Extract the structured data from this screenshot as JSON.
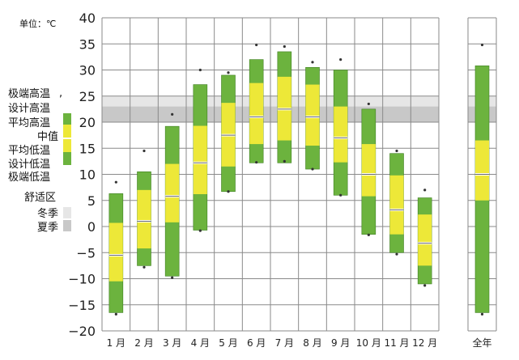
{
  "chart_data": {
    "type": "box",
    "unit_label": "单位：℃",
    "ylim": [
      -20,
      40
    ],
    "yticks": [
      -20,
      -15,
      -10,
      -5,
      0,
      5,
      10,
      15,
      20,
      25,
      30,
      35,
      40
    ],
    "comfort_zones": {
      "winter": [
        20,
        25
      ],
      "summer": [
        20,
        23
      ]
    },
    "colors": {
      "green": "#6cb33e",
      "yellow": "#ede838",
      "winter_zone": "#e6e6e6",
      "summer_zone": "#c8c8c8",
      "grid": "#8a8a8a"
    },
    "legend": {
      "stat_labels": [
        "极端高温",
        "设计高温",
        "平均高温",
        "中值",
        "平均低温",
        "设计低温",
        "极端低温"
      ],
      "zone_title": "舒适区",
      "winter_label": "冬季",
      "summer_label": "夏季"
    },
    "categories": [
      "1 月",
      "2 月",
      "3 月",
      "4 月",
      "5 月",
      "6 月",
      "7 月",
      "8 月",
      "9 月",
      "10 月",
      "11 月",
      "12 月"
    ],
    "annual_label": "全年",
    "months": [
      {
        "extreme_high": 8.5,
        "design_high": 6.3,
        "avg_high": 0.7,
        "median": -5.5,
        "avg_low": -10.5,
        "design_low": -16.5,
        "extreme_low": -16.8
      },
      {
        "extreme_high": 14.5,
        "design_high": 10.5,
        "avg_high": 7.0,
        "median": 1.0,
        "avg_low": -4.2,
        "design_low": -7.5,
        "extreme_low": -7.8
      },
      {
        "extreme_high": 21.5,
        "design_high": 19.2,
        "avg_high": 12.0,
        "median": 5.8,
        "avg_low": 0.8,
        "design_low": -9.5,
        "extreme_low": -9.8
      },
      {
        "extreme_high": 30.0,
        "design_high": 27.2,
        "avg_high": 19.3,
        "median": 12.2,
        "avg_low": 6.2,
        "design_low": -0.7,
        "extreme_low": -0.8
      },
      {
        "extreme_high": 29.5,
        "design_high": 29.0,
        "avg_high": 23.7,
        "median": 17.5,
        "avg_low": 11.5,
        "design_low": 6.7,
        "extreme_low": 6.7
      },
      {
        "extreme_high": 34.8,
        "design_high": 32.0,
        "avg_high": 27.5,
        "median": 21.0,
        "avg_low": 15.8,
        "design_low": 12.2,
        "extreme_low": 12.3
      },
      {
        "extreme_high": 34.5,
        "design_high": 33.5,
        "avg_high": 28.7,
        "median": 22.5,
        "avg_low": 16.5,
        "design_low": 12.2,
        "extreme_low": 12.5
      },
      {
        "extreme_high": 31.5,
        "design_high": 30.5,
        "avg_high": 27.2,
        "median": 21.0,
        "avg_low": 15.5,
        "design_low": 11.0,
        "extreme_low": 11.0
      },
      {
        "extreme_high": 32.0,
        "design_high": 30.0,
        "avg_high": 23.0,
        "median": 17.0,
        "avg_low": 12.3,
        "design_low": 6.0,
        "extreme_low": 6.0
      },
      {
        "extreme_high": 23.5,
        "design_high": 22.5,
        "avg_high": 15.8,
        "median": 10.0,
        "avg_low": 5.8,
        "design_low": -1.5,
        "extreme_low": -1.6
      },
      {
        "extreme_high": 14.5,
        "design_high": 14.0,
        "avg_high": 9.8,
        "median": 3.2,
        "avg_low": -1.5,
        "design_low": -5.0,
        "extreme_low": -5.3
      },
      {
        "extreme_high": 7.0,
        "design_high": 5.5,
        "avg_high": 2.3,
        "median": -3.2,
        "avg_low": -7.5,
        "design_low": -11.0,
        "extreme_low": -11.3
      }
    ],
    "annual": {
      "extreme_high": 34.8,
      "design_high": 30.8,
      "avg_high": 16.5,
      "median": 10.0,
      "avg_low": 5.0,
      "design_low": -16.5,
      "extreme_low": -16.8
    }
  }
}
